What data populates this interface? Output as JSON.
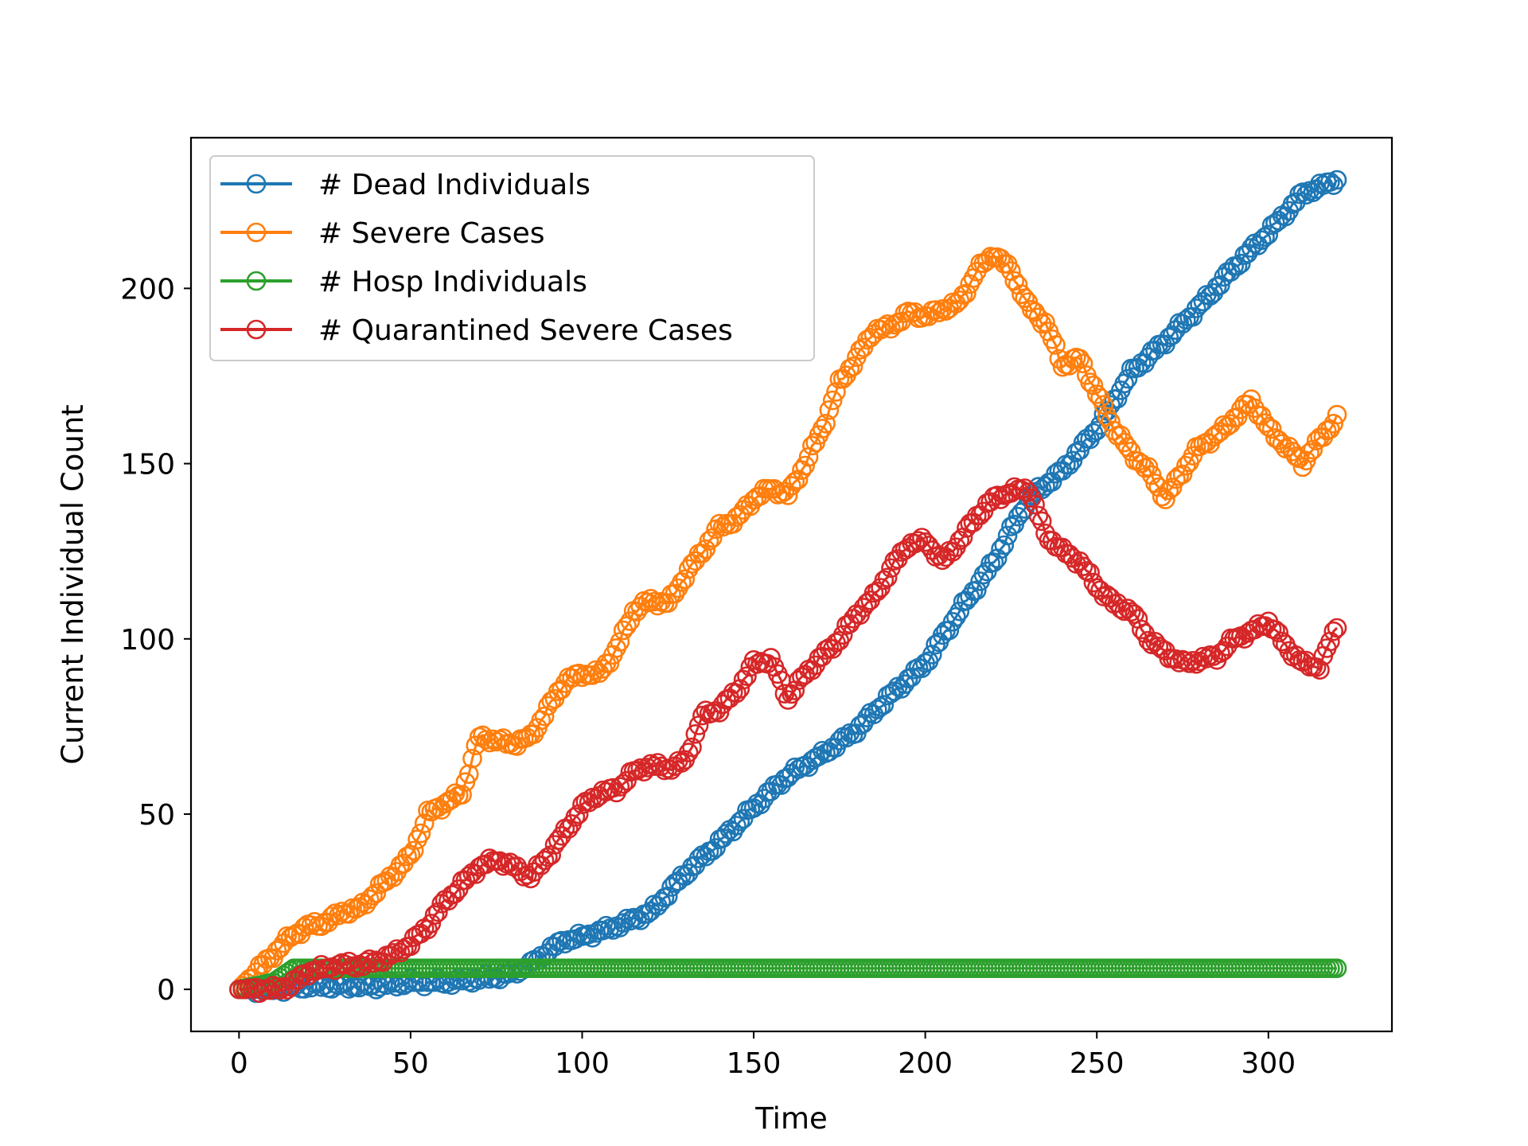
{
  "chart_data": {
    "type": "line",
    "xlabel": "Time",
    "ylabel": "Current Individual Count",
    "xlim": [
      -14,
      336
    ],
    "ylim": [
      -12,
      243
    ],
    "xticks": [
      0,
      50,
      100,
      150,
      200,
      250,
      300
    ],
    "yticks": [
      0,
      50,
      100,
      150,
      200
    ],
    "grid": false,
    "legend_position": "top-left",
    "marker": "open-circle",
    "series": [
      {
        "name": "# Dead Individuals",
        "color": "#1f77b4",
        "x": [
          0,
          10,
          20,
          30,
          40,
          50,
          60,
          70,
          78,
          85,
          90,
          95,
          100,
          110,
          120,
          130,
          140,
          150,
          160,
          170,
          180,
          190,
          200,
          210,
          220,
          230,
          240,
          250,
          260,
          270,
          280,
          290,
          300,
          310,
          320
        ],
        "y": [
          0,
          0,
          1,
          1,
          1,
          2,
          2,
          3,
          4,
          7,
          11,
          14,
          15,
          18,
          22,
          33,
          42,
          52,
          61,
          67,
          74,
          84,
          93,
          108,
          122,
          140,
          148,
          160,
          176,
          185,
          195,
          206,
          216,
          227,
          231
        ]
      },
      {
        "name": "# Severe Cases",
        "color": "#ff7f0e",
        "x": [
          0,
          5,
          10,
          15,
          20,
          25,
          30,
          35,
          40,
          45,
          50,
          55,
          60,
          65,
          70,
          75,
          80,
          85,
          90,
          95,
          100,
          105,
          110,
          115,
          120,
          125,
          130,
          135,
          140,
          145,
          150,
          155,
          160,
          165,
          170,
          175,
          180,
          185,
          190,
          195,
          200,
          205,
          210,
          215,
          220,
          225,
          230,
          235,
          240,
          245,
          250,
          255,
          260,
          265,
          270,
          275,
          280,
          285,
          290,
          295,
          300,
          305,
          310,
          315,
          320
        ],
        "y": [
          0,
          5,
          10,
          15,
          18,
          19,
          22,
          23,
          28,
          33,
          38,
          50,
          53,
          56,
          72,
          71,
          70,
          72,
          80,
          88,
          90,
          90,
          97,
          108,
          111,
          110,
          118,
          125,
          132,
          134,
          140,
          143,
          141,
          150,
          160,
          173,
          180,
          188,
          189,
          193,
          192,
          194,
          196,
          205,
          210,
          205,
          195,
          190,
          178,
          180,
          170,
          160,
          153,
          148,
          140,
          148,
          155,
          158,
          163,
          168,
          160,
          155,
          150,
          157,
          163
        ]
      },
      {
        "name": "# Hosp Individuals",
        "color": "#2ca02c",
        "x": [
          0,
          5,
          10,
          13,
          16,
          20,
          40,
          80,
          150,
          200,
          250,
          300,
          320
        ],
        "y": [
          0,
          1,
          2,
          4,
          6,
          6,
          6,
          6,
          6,
          6,
          6,
          6,
          6
        ]
      },
      {
        "name": "# Quarantined Severe Cases",
        "color": "#d62728",
        "x": [
          0,
          5,
          10,
          15,
          20,
          25,
          30,
          35,
          40,
          45,
          50,
          55,
          60,
          65,
          70,
          75,
          80,
          85,
          90,
          95,
          100,
          105,
          110,
          115,
          120,
          125,
          130,
          135,
          140,
          145,
          150,
          155,
          160,
          165,
          170,
          175,
          180,
          185,
          190,
          195,
          200,
          205,
          210,
          215,
          220,
          225,
          230,
          235,
          240,
          245,
          250,
          255,
          260,
          265,
          270,
          275,
          280,
          285,
          290,
          295,
          300,
          305,
          310,
          315,
          320
        ],
        "y": [
          0,
          0,
          0,
          1,
          5,
          6,
          7,
          7,
          8,
          10,
          13,
          18,
          25,
          30,
          35,
          37,
          35,
          32,
          38,
          45,
          52,
          56,
          57,
          62,
          64,
          63,
          65,
          78,
          80,
          85,
          93,
          94,
          83,
          90,
          95,
          100,
          107,
          112,
          120,
          127,
          128,
          122,
          128,
          135,
          140,
          142,
          143,
          130,
          125,
          122,
          115,
          110,
          108,
          100,
          96,
          93,
          94,
          95,
          100,
          102,
          105,
          98,
          93,
          92,
          104
        ]
      }
    ]
  }
}
